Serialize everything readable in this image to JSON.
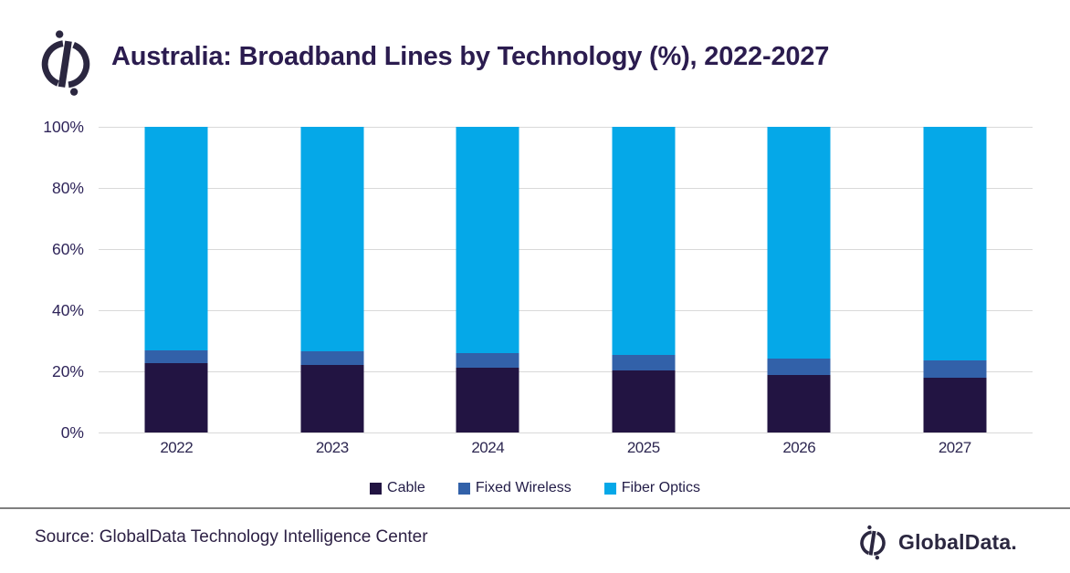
{
  "header": {
    "logo_icon": "globaldata-compass-icon"
  },
  "footer": {
    "source": "Source: GlobalData Technology Intelligence Center",
    "brand": "GlobalData.",
    "logo_icon": "globaldata-compass-icon"
  },
  "theme": {
    "title_color": "#2B1C4F",
    "axis_label_color": "#2E2459",
    "gridline_color": "#D9D9D9",
    "divider_color": "#7F7F7F",
    "logo_color": "#2B2740",
    "background": "#FFFFFF"
  },
  "chart_data": {
    "type": "bar",
    "stacked": true,
    "stacked_total": 100,
    "title": "Australia: Broadband Lines by Technology (%), 2022-2027",
    "categories": [
      "2022",
      "2023",
      "2024",
      "2025",
      "2026",
      "2027"
    ],
    "series": [
      {
        "name": "Cable",
        "color": "#221442",
        "values": [
          22.6,
          22.1,
          21.3,
          20.4,
          18.7,
          17.9
        ]
      },
      {
        "name": "Fixed Wireless",
        "color": "#3261A9",
        "values": [
          4.3,
          4.5,
          4.8,
          5.1,
          5.5,
          5.7
        ]
      },
      {
        "name": "Fiber Optics",
        "color": "#05A8E8",
        "values": [
          73.1,
          73.4,
          73.9,
          74.5,
          75.8,
          76.4
        ]
      }
    ],
    "xlabel": "",
    "ylabel": "",
    "ylim": [
      0,
      100
    ],
    "yticks": [
      {
        "value": 0,
        "label": "0%"
      },
      {
        "value": 20,
        "label": "20%"
      },
      {
        "value": 40,
        "label": "40%"
      },
      {
        "value": 60,
        "label": "60%"
      },
      {
        "value": 80,
        "label": "80%"
      },
      {
        "value": 100,
        "label": "100%"
      }
    ],
    "grid": true,
    "legend_position": "bottom"
  }
}
